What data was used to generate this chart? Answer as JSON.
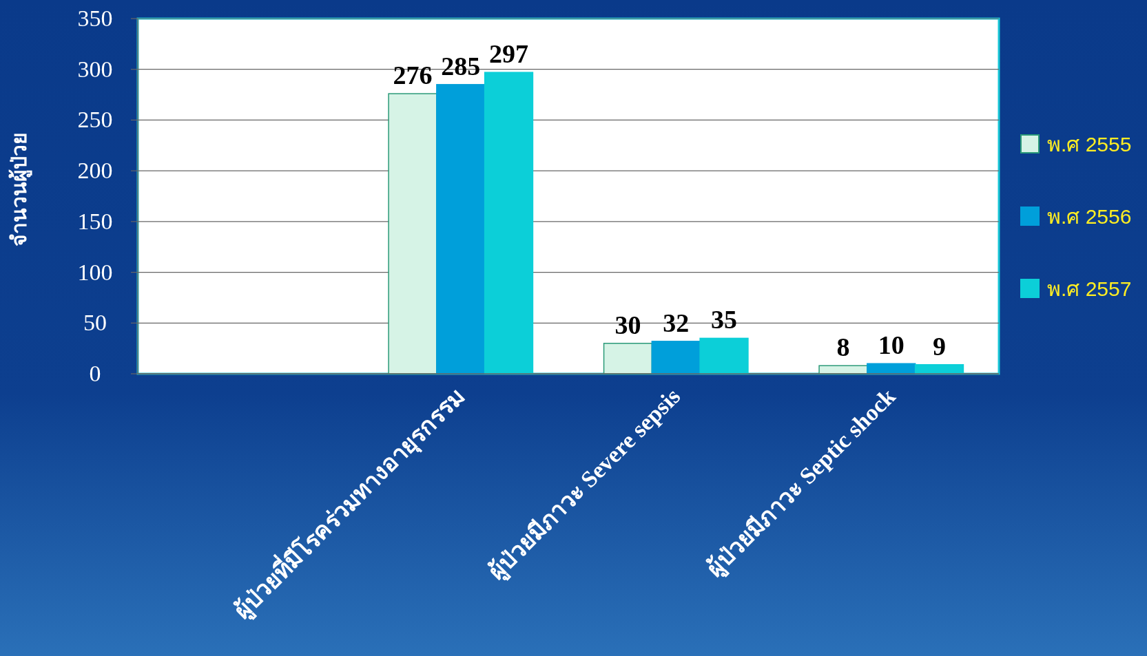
{
  "chart_data": {
    "type": "bar",
    "ylabel": "จำนวนผู้ป่วย",
    "categories": [
      null,
      "ผู้ป่วยที่มีโรคร่วมทางอายุรกรรม",
      "ผู้ป่วยมีภาวะ Severe sepsis",
      "ผู้ป่วยมีภาวะ Septic shock"
    ],
    "series": [
      {
        "name": "พ.ศ 2555",
        "color": "#d6f3e6",
        "values": [
          null,
          276,
          30,
          8
        ]
      },
      {
        "name": "พ.ศ 2556",
        "color": "#009fda",
        "values": [
          null,
          285,
          32,
          10
        ]
      },
      {
        "name": "พ.ศ 2557",
        "color": "#0ccfd8",
        "values": [
          null,
          297,
          35,
          9
        ]
      }
    ],
    "ylim": [
      0,
      350
    ],
    "yticks": [
      0,
      50,
      100,
      150,
      200,
      250,
      300,
      350
    ],
    "grid": "y",
    "legend": "right",
    "data_labels": true
  }
}
